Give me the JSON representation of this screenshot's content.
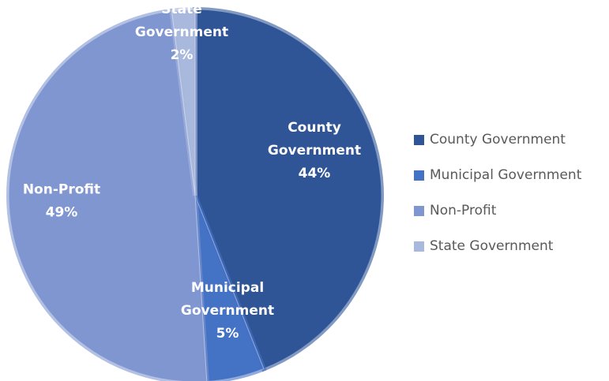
{
  "chart_data": {
    "type": "pie",
    "title": "",
    "categories": [
      "County Government",
      "Municipal Government",
      "Non-Profit",
      "State Government"
    ],
    "values": [
      44,
      5,
      49,
      2
    ],
    "slice_labels": [
      [
        "County",
        "Government",
        "44%"
      ],
      [
        "Municipal",
        "Government",
        "5%"
      ],
      [
        "Non-Profit",
        "49%"
      ],
      [
        "State",
        "Government",
        "2%"
      ]
    ],
    "colors": [
      "#2f5597",
      "#4472c4",
      "#7f96d1",
      "#a9b8dd"
    ],
    "legend_position": "right"
  }
}
